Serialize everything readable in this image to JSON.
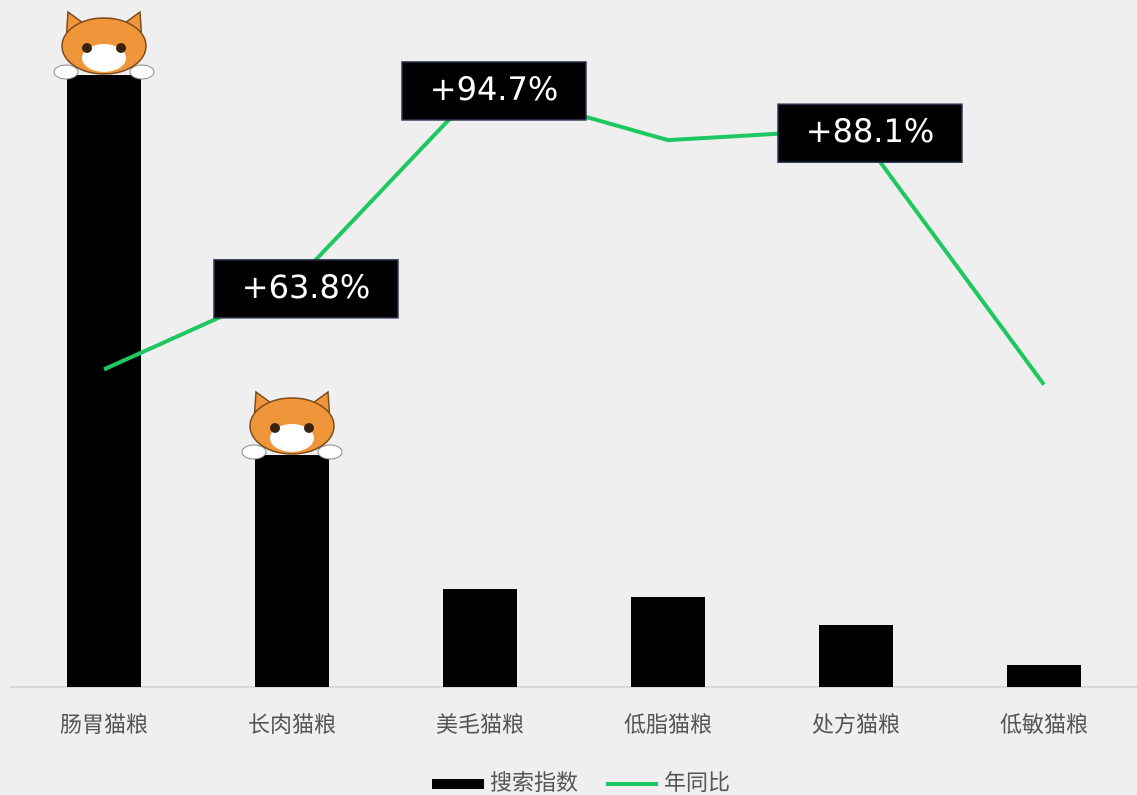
{
  "chart_data": {
    "type": "bar-line",
    "categories": [
      "肠胃猫粮",
      "长肉猫粮",
      "美毛猫粮",
      "低脂猫粮",
      "处方猫粮",
      "低敏猫粮"
    ],
    "series": [
      {
        "name": "搜索指数",
        "type": "bar",
        "color": "#000000",
        "values": [
          612,
          232,
          98,
          90,
          62,
          22
        ]
      },
      {
        "name": "年同比",
        "type": "line",
        "axis": "y2",
        "color": "#1ec860",
        "values": [
          50.6,
          63.8,
          94.7,
          86.4,
          88.1,
          48.2
        ],
        "value_labels": [
          null,
          "+63.8%",
          "+94.7%",
          null,
          "+88.1%",
          null
        ]
      }
    ],
    "ylim": [
      0,
      650
    ],
    "y2lim": [
      1,
      102.5
    ],
    "legend": "bottom"
  }
}
